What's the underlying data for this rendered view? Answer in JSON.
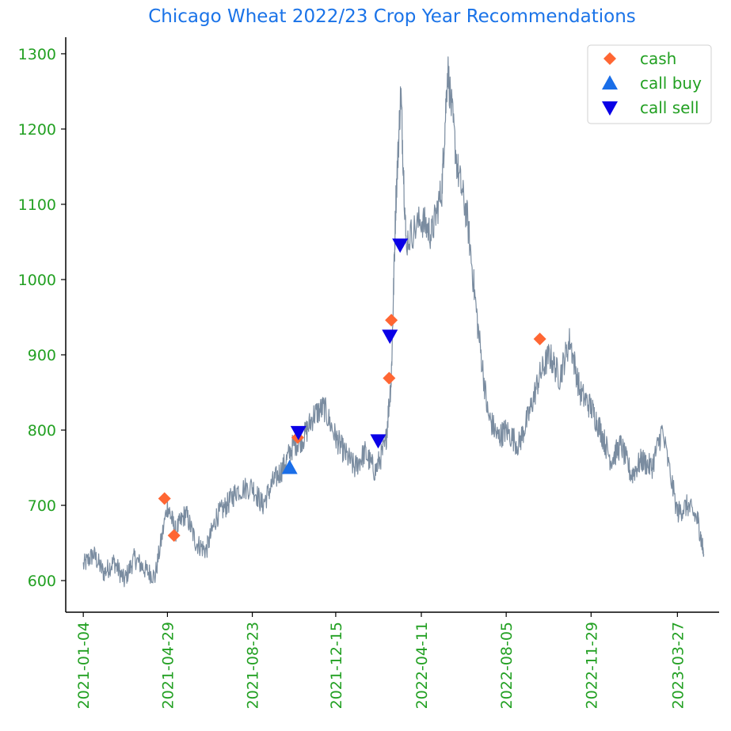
{
  "chart_data": {
    "type": "line",
    "title": "Chicago Wheat 2022/23 Crop Year Recommendations",
    "xlabel": "",
    "ylabel": "",
    "x_axis": {
      "type": "date",
      "range": [
        "2020-12-11",
        "2023-05-23"
      ]
    },
    "ylim": [
      558,
      1322
    ],
    "x_ticks": [
      "2021-01-04",
      "2021-04-29",
      "2021-08-23",
      "2021-12-15",
      "2022-04-11",
      "2022-08-05",
      "2022-11-29",
      "2023-03-27"
    ],
    "y_ticks": [
      600,
      700,
      800,
      900,
      1000,
      1100,
      1200,
      1300
    ],
    "grid": false,
    "legend": {
      "placement": "top-right"
    },
    "colors": {
      "price": "#7a8ca0",
      "cash": "#ff6633",
      "call_buy": "#1a6ee8",
      "call_sell": "#0a00e6",
      "ticks": "#22a022",
      "title": "#1a73e8",
      "axis": "#000000"
    },
    "series": [
      {
        "role": "price",
        "dates": [
          "2021-01-04",
          "2021-01-18",
          "2021-02-01",
          "2021-02-15",
          "2021-03-01",
          "2021-03-15",
          "2021-03-29",
          "2021-04-12",
          "2021-04-29",
          "2021-05-10",
          "2021-05-24",
          "2021-06-07",
          "2021-06-21",
          "2021-07-05",
          "2021-07-19",
          "2021-08-02",
          "2021-08-23",
          "2021-09-06",
          "2021-09-20",
          "2021-10-04",
          "2021-10-18",
          "2021-11-01",
          "2021-11-15",
          "2021-11-29",
          "2021-12-15",
          "2021-12-27",
          "2022-01-10",
          "2022-01-24",
          "2022-02-07",
          "2022-02-21",
          "2022-03-01",
          "2022-03-07",
          "2022-03-14",
          "2022-03-21",
          "2022-04-11",
          "2022-04-25",
          "2022-05-09",
          "2022-05-17",
          "2022-05-30",
          "2022-06-13",
          "2022-06-27",
          "2022-07-11",
          "2022-07-25",
          "2022-08-05",
          "2022-08-22",
          "2022-09-05",
          "2022-09-19",
          "2022-10-03",
          "2022-10-17",
          "2022-10-31",
          "2022-11-14",
          "2022-11-29",
          "2022-12-12",
          "2022-12-26",
          "2023-01-09",
          "2023-01-23",
          "2023-02-06",
          "2023-02-20",
          "2023-03-06",
          "2023-03-27",
          "2023-04-10",
          "2023-04-24",
          "2023-05-02"
        ],
        "values": [
          620,
          635,
          610,
          625,
          600,
          630,
          615,
          605,
          700,
          665,
          690,
          650,
          640,
          685,
          700,
          720,
          725,
          700,
          730,
          750,
          780,
          790,
          820,
          830,
          790,
          770,
          750,
          770,
          745,
          780,
          870,
          1100,
          1250,
          1050,
          1080,
          1060,
          1120,
          1280,
          1150,
          1080,
          940,
          820,
          790,
          800,
          780,
          820,
          870,
          900,
          870,
          920,
          850,
          830,
          800,
          760,
          780,
          740,
          760,
          750,
          800,
          690,
          700,
          680,
          635
        ]
      },
      {
        "name": "cash",
        "role": "marker",
        "points": [
          {
            "x": "2021-04-25",
            "y": 709
          },
          {
            "x": "2021-05-08",
            "y": 660
          },
          {
            "x": "2021-10-24",
            "y": 790
          },
          {
            "x": "2022-02-26",
            "y": 869
          },
          {
            "x": "2022-03-01",
            "y": 946
          },
          {
            "x": "2022-09-20",
            "y": 921
          }
        ]
      },
      {
        "name": "call buy",
        "role": "marker",
        "points": [
          {
            "x": "2021-10-13",
            "y": 750
          }
        ]
      },
      {
        "name": "call sell",
        "role": "marker",
        "points": [
          {
            "x": "2021-10-25",
            "y": 797
          },
          {
            "x": "2022-02-11",
            "y": 786
          },
          {
            "x": "2022-02-27",
            "y": 925
          },
          {
            "x": "2022-03-13",
            "y": 1046
          }
        ]
      }
    ]
  }
}
